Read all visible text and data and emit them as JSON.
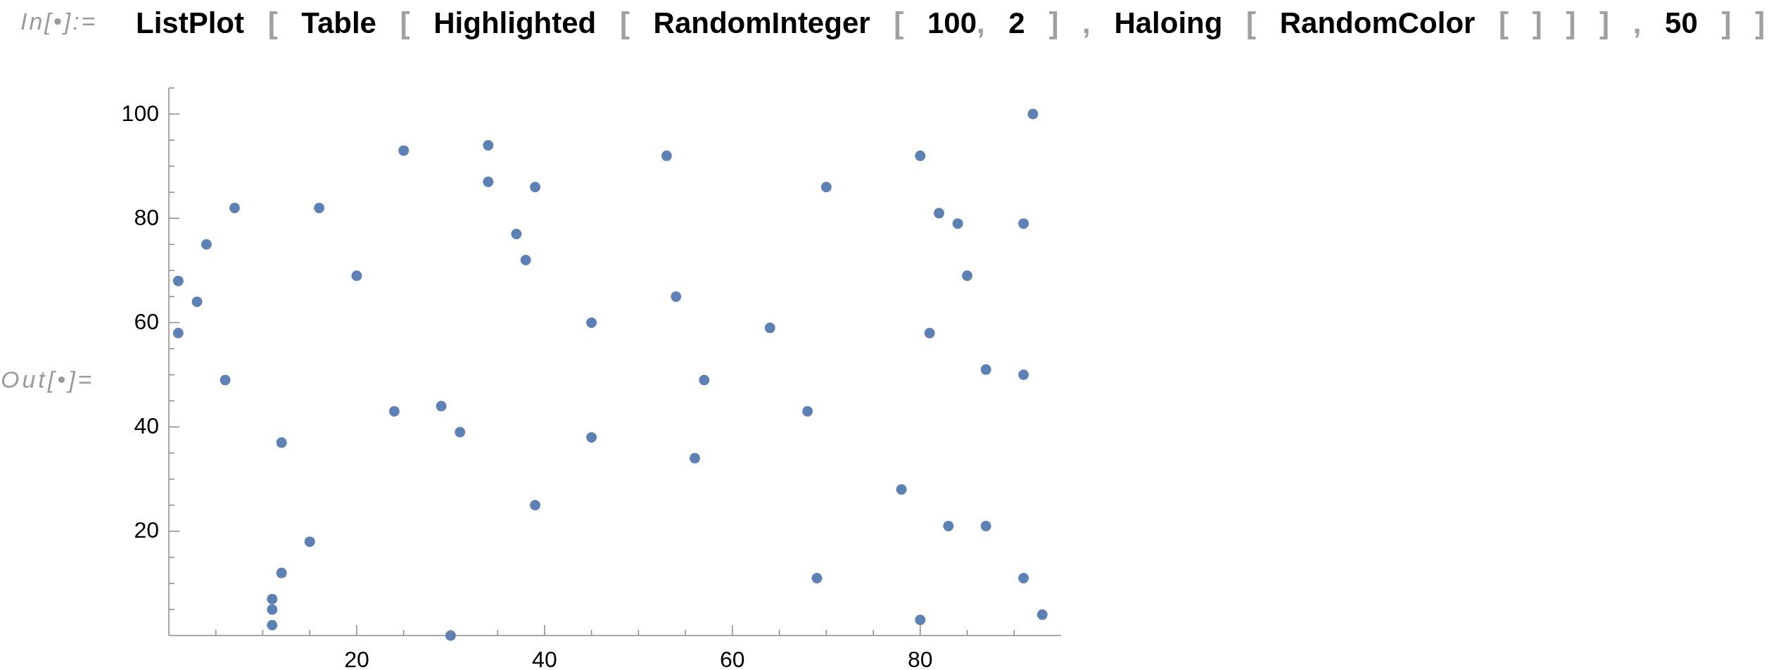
{
  "chart_data": {
    "type": "scatter",
    "annotations": [
      "In[•]:=",
      "ListPlot [ Table [ Highlighted [ RandomInteger [ 100, 2 ] , Haloing [ RandomColor [ ] ] ] , 50 ] ]",
      "Out[•]="
    ],
    "x": [
      1,
      1,
      3,
      4,
      6,
      7,
      11,
      11,
      11,
      12,
      12,
      15,
      16,
      20,
      24,
      25,
      29,
      30,
      31,
      34,
      34,
      37,
      38,
      39,
      39,
      45,
      45,
      53,
      54,
      56,
      57,
      64,
      68,
      69,
      70,
      78,
      80,
      80,
      81,
      82,
      83,
      84,
      85,
      87,
      87,
      91,
      91,
      91,
      92,
      93
    ],
    "values": [
      68,
      58,
      64,
      75,
      49,
      82,
      7,
      5,
      2,
      37,
      12,
      18,
      82,
      69,
      43,
      93,
      44,
      0,
      39,
      94,
      87,
      77,
      72,
      86,
      25,
      60,
      38,
      92,
      65,
      34,
      49,
      59,
      43,
      11,
      86,
      28,
      92,
      3,
      58,
      81,
      21,
      79,
      69,
      51,
      21,
      79,
      50,
      11,
      100,
      4
    ],
    "color": "#5e81b5",
    "marker": "circle",
    "xlim": [
      0,
      95
    ],
    "ylim": [
      0,
      105
    ],
    "xticks": [
      {
        "value": 5,
        "label": null
      },
      {
        "value": 10,
        "label": null
      },
      {
        "value": 15,
        "label": null
      },
      20,
      {
        "value": 25,
        "label": null
      },
      {
        "value": 30,
        "label": null
      },
      {
        "value": 35,
        "label": null
      },
      40,
      {
        "value": 45,
        "label": null
      },
      {
        "value": 50,
        "label": null
      },
      {
        "value": 55,
        "label": null
      },
      60,
      {
        "value": 65,
        "label": null
      },
      {
        "value": 70,
        "label": null
      },
      {
        "value": 75,
        "label": null
      },
      80,
      {
        "value": 85,
        "label": null
      },
      {
        "value": 90,
        "label": null
      }
    ],
    "yticks": [
      {
        "value": 5,
        "label": null
      },
      {
        "value": 10,
        "label": null
      },
      {
        "value": 15,
        "label": null
      },
      20,
      {
        "value": 25,
        "label": null
      },
      {
        "value": 30,
        "label": null
      },
      {
        "value": 35,
        "label": null
      },
      40,
      {
        "value": 45,
        "label": null
      },
      {
        "value": 50,
        "label": null
      },
      {
        "value": 55,
        "label": null
      },
      60,
      {
        "value": 65,
        "label": null
      },
      {
        "value": 70,
        "label": null
      },
      {
        "value": 75,
        "label": null
      },
      80,
      {
        "value": 85,
        "label": null
      },
      {
        "value": 90,
        "label": null
      },
      {
        "value": 95,
        "label": null
      },
      100,
      {
        "value": 105,
        "label": null
      }
    ]
  }
}
